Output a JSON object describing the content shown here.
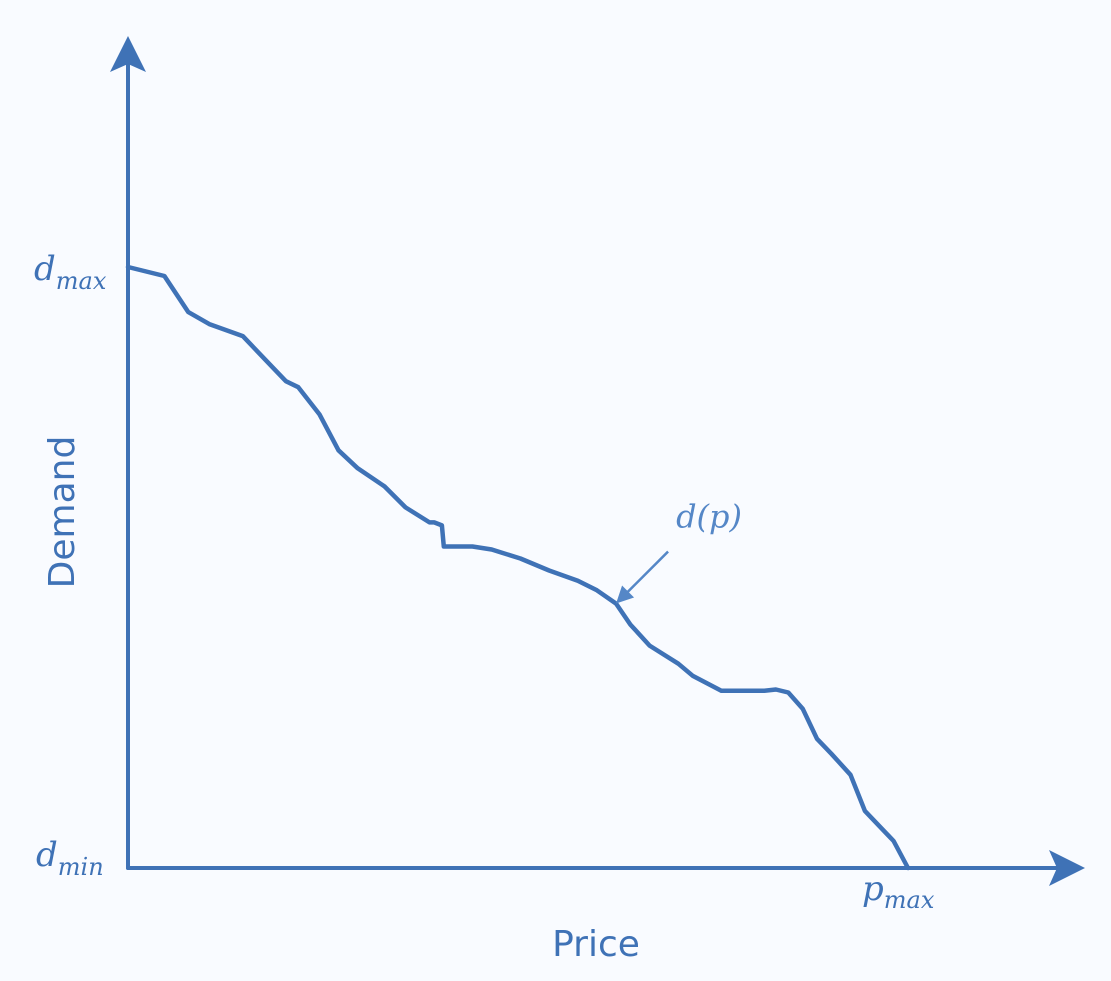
{
  "chart_data": {
    "type": "line",
    "title": "",
    "xlabel": "Price",
    "ylabel": "Demand",
    "xlim": [
      0,
      1
    ],
    "ylim": [
      0,
      1
    ],
    "grid": false,
    "legend": "none",
    "x_tick_labels": [
      {
        "main": "p",
        "sub": "max",
        "value": 0.815
      }
    ],
    "y_tick_labels": [
      {
        "main": "d",
        "sub": "max",
        "value": 1.0
      },
      {
        "main": "d",
        "sub": "min",
        "value": 0.0
      }
    ],
    "annotation": {
      "text": "d(p)",
      "points_to": [
        0.51,
        0.44
      ]
    },
    "series": [
      {
        "x": [
          0.0,
          0.038,
          0.063,
          0.085,
          0.12,
          0.15,
          0.165,
          0.178,
          0.2,
          0.22,
          0.24,
          0.268,
          0.29,
          0.315,
          0.32,
          0.328,
          0.33,
          0.36,
          0.38,
          0.39,
          0.41,
          0.44,
          0.47,
          0.49,
          0.51,
          0.525,
          0.545,
          0.575,
          0.59,
          0.62,
          0.665,
          0.677,
          0.69,
          0.705,
          0.72,
          0.735,
          0.755,
          0.77,
          0.785,
          0.8,
          0.815
        ],
        "values": [
          1.0,
          0.985,
          0.925,
          0.905,
          0.885,
          0.835,
          0.81,
          0.8,
          0.755,
          0.695,
          0.665,
          0.635,
          0.6,
          0.575,
          0.575,
          0.57,
          0.535,
          0.535,
          0.53,
          0.525,
          0.515,
          0.495,
          0.478,
          0.462,
          0.44,
          0.405,
          0.37,
          0.34,
          0.32,
          0.295,
          0.295,
          0.297,
          0.292,
          0.265,
          0.215,
          0.19,
          0.155,
          0.095,
          0.07,
          0.045,
          0.0
        ],
        "color": "#3f72b6"
      }
    ]
  }
}
